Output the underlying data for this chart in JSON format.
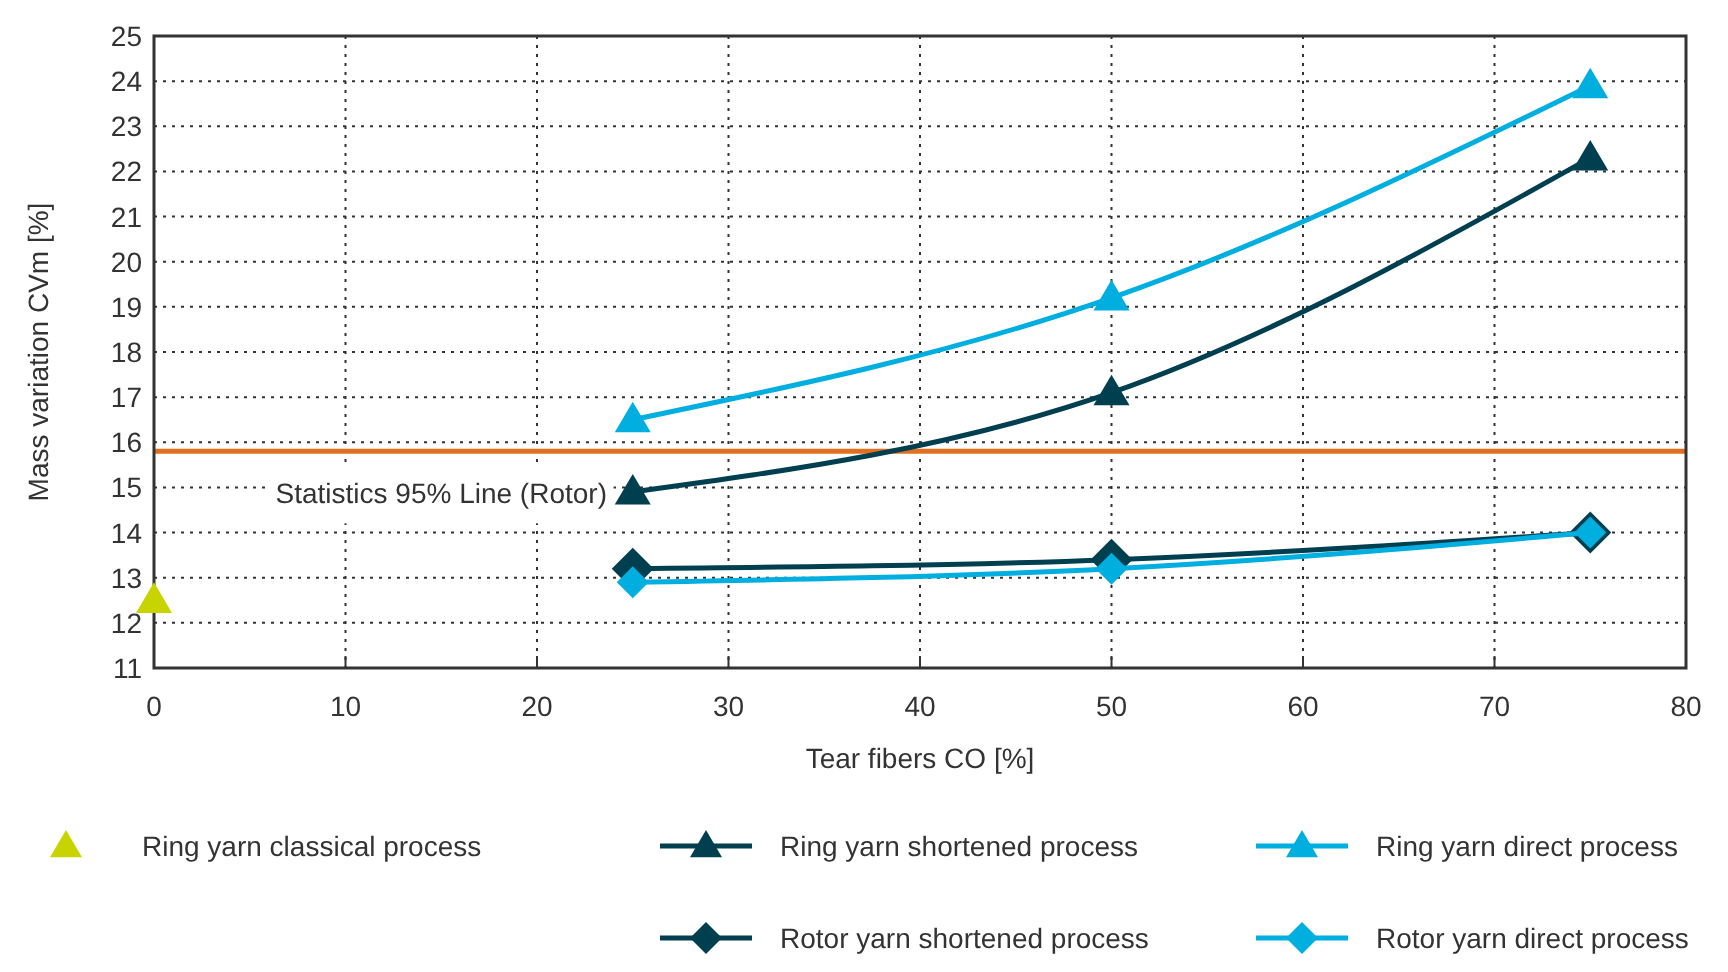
{
  "chart_data": {
    "type": "line",
    "xlabel": "Tear fibers CO [%]",
    "ylabel": "Mass variation CVm [%]",
    "xlim": [
      0,
      80
    ],
    "xticks": [
      0,
      10,
      20,
      30,
      40,
      50,
      60,
      70,
      80
    ],
    "ylim": [
      11,
      25
    ],
    "yticks": [
      11,
      12,
      13,
      14,
      15,
      16,
      17,
      18,
      19,
      20,
      21,
      22,
      23,
      24,
      25
    ],
    "grid": true,
    "legend": "bottom",
    "ref_lines": [
      {
        "axis": "y",
        "value": 15.8,
        "label": "Statistics 95% Line (Rotor)",
        "color": "#e07020"
      }
    ],
    "series": [
      {
        "name": "Ring yarn classical process",
        "type": "scatter",
        "marker": "triangle",
        "color": "#c8d400",
        "x": [
          0
        ],
        "values": [
          12.5
        ]
      },
      {
        "name": "Ring yarn shortened process",
        "marker": "triangle",
        "color": "#003f4f",
        "x": [
          25,
          50,
          75
        ],
        "values": [
          14.9,
          17.1,
          22.3
        ]
      },
      {
        "name": "Ring yarn direct process",
        "marker": "triangle",
        "color": "#00aee0",
        "x": [
          25,
          50,
          75
        ],
        "values": [
          16.5,
          19.2,
          23.9
        ]
      },
      {
        "name": "Rotor yarn shortened process",
        "marker": "diamond",
        "color": "#003f4f",
        "x": [
          25,
          50,
          75
        ],
        "values": [
          13.2,
          13.4,
          14.0
        ]
      },
      {
        "name": "Rotor yarn direct process",
        "marker": "diamond",
        "color": "#00aee0",
        "x": [
          25,
          50,
          75
        ],
        "values": [
          12.9,
          13.2,
          14.0
        ]
      }
    ]
  }
}
